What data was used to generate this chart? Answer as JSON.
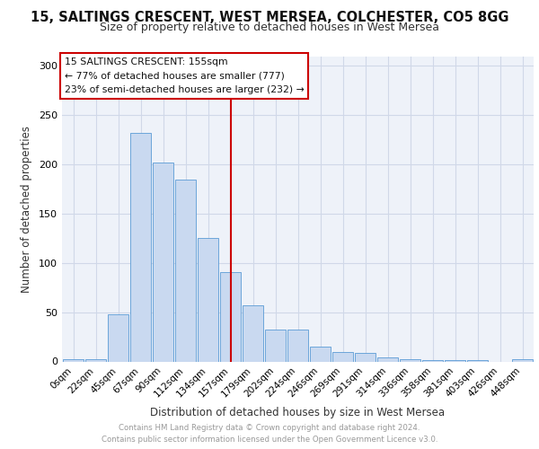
{
  "title_line1": "15, SALTINGS CRESCENT, WEST MERSEA, COLCHESTER, CO5 8GG",
  "title_line2": "Size of property relative to detached houses in West Mersea",
  "xlabel": "Distribution of detached houses by size in West Mersea",
  "ylabel": "Number of detached properties",
  "bar_labels": [
    "0sqm",
    "22sqm",
    "45sqm",
    "67sqm",
    "90sqm",
    "112sqm",
    "134sqm",
    "157sqm",
    "179sqm",
    "202sqm",
    "224sqm",
    "246sqm",
    "269sqm",
    "291sqm",
    "314sqm",
    "336sqm",
    "358sqm",
    "381sqm",
    "403sqm",
    "426sqm",
    "448sqm"
  ],
  "bar_values": [
    2,
    2,
    48,
    232,
    202,
    185,
    125,
    91,
    57,
    32,
    32,
    15,
    10,
    9,
    4,
    2,
    1,
    1,
    1,
    0,
    2
  ],
  "bar_color": "#c9d9f0",
  "bar_edge_color": "#5b9bd5",
  "property_line_x": 7,
  "annotation_title": "15 SALTINGS CRESCENT: 155sqm",
  "annotation_line1": "← 77% of detached houses are smaller (777)",
  "annotation_line2": "23% of semi-detached houses are larger (232) →",
  "annotation_box_color": "#ffffff",
  "annotation_box_edge": "#cc0000",
  "vline_color": "#cc0000",
  "ylim": [
    0,
    310
  ],
  "yticks": [
    0,
    50,
    100,
    150,
    200,
    250,
    300
  ],
  "grid_color": "#d0d8e8",
  "footer_line1": "Contains HM Land Registry data © Crown copyright and database right 2024.",
  "footer_line2": "Contains public sector information licensed under the Open Government Licence v3.0.",
  "background_color": "#eef2f9"
}
